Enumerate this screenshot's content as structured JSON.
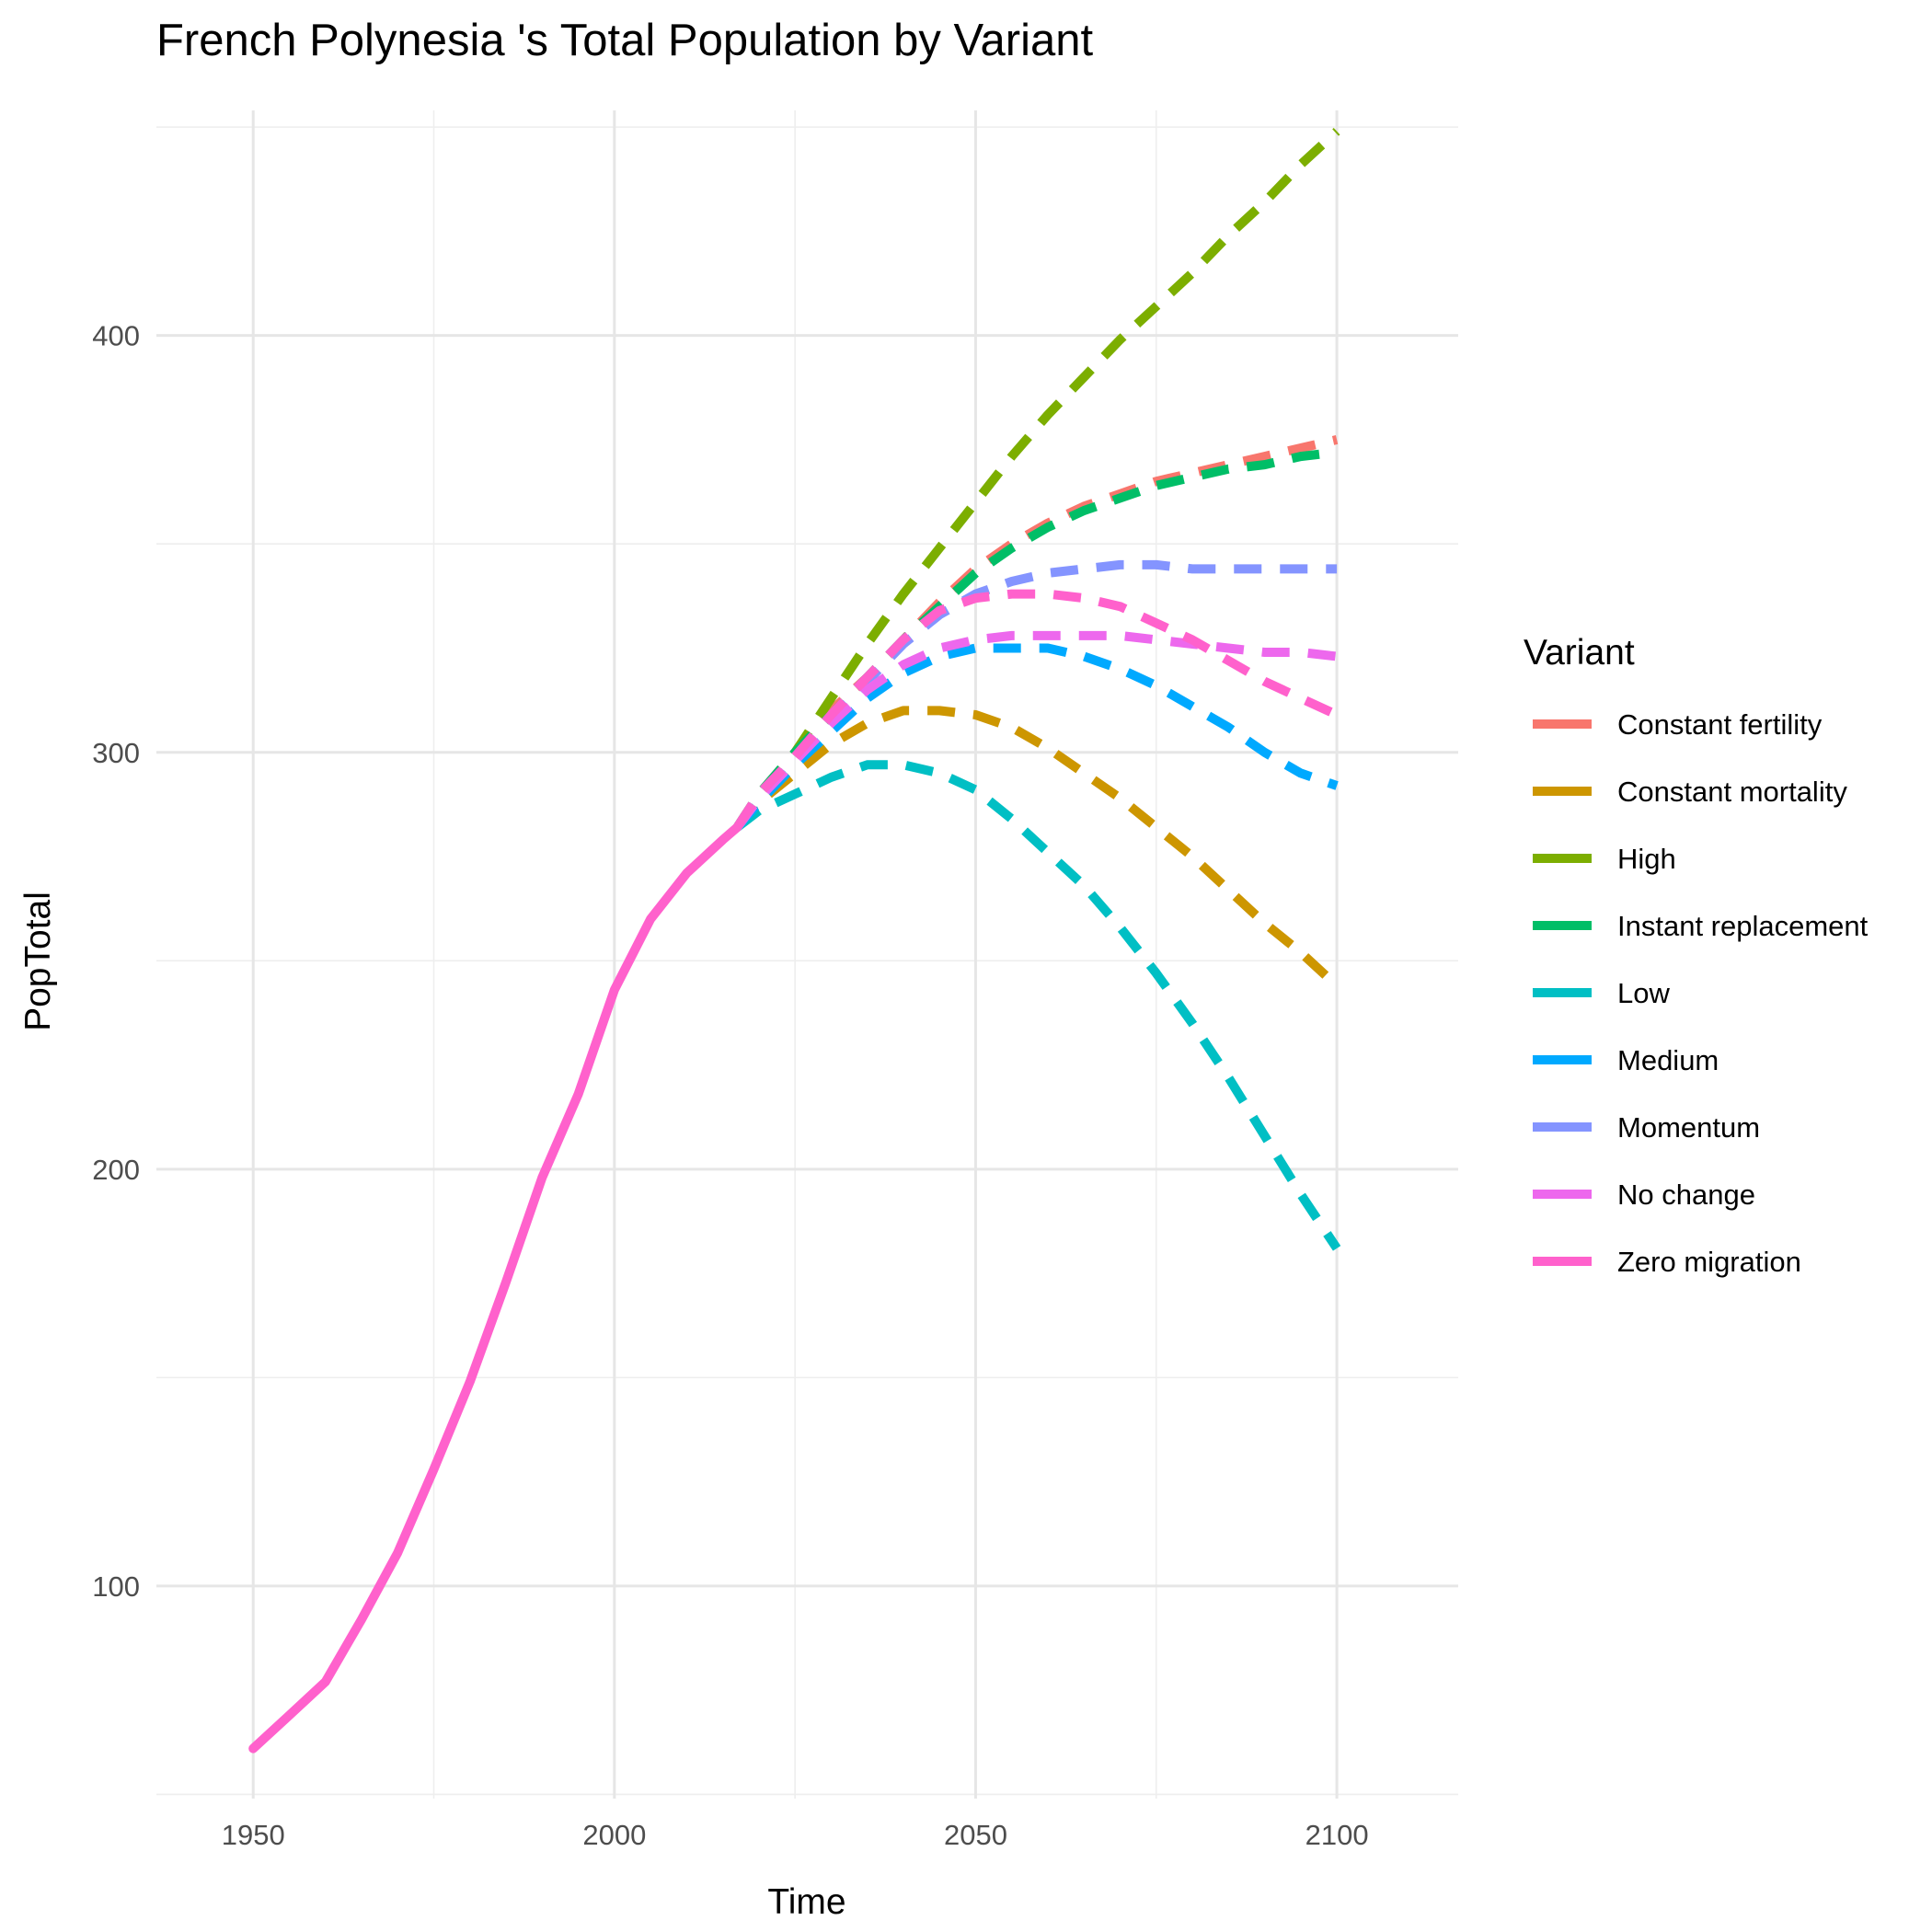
{
  "chart_data": {
    "type": "line",
    "title": "French Polynesia 's Total Population by Variant",
    "xlabel": "Time",
    "ylabel": "PopTotal",
    "xlim": [
      1936.6,
      2116.8
    ],
    "ylim": [
      49,
      454
    ],
    "x_ticks": [
      1950,
      2000,
      2050,
      2100
    ],
    "x_tick_labels": [
      "1950",
      "2000",
      "2050",
      "2100"
    ],
    "y_ticks": [
      100,
      200,
      300,
      400
    ],
    "y_tick_labels": [
      "100",
      "200",
      "300",
      "400"
    ],
    "grid": true,
    "legend": {
      "title": "Variant",
      "position": "right"
    },
    "series": [
      {
        "name": "Constant fertility",
        "color": "#F8766D",
        "dashed": true,
        "x": [
          2017,
          2020,
          2025,
          2030,
          2035,
          2040,
          2045,
          2050,
          2055,
          2060,
          2065,
          2070,
          2075,
          2080,
          2085,
          2090,
          2095,
          2100
        ],
        "y": [
          282,
          290,
          300,
          310,
          318,
          327,
          336,
          344,
          350,
          355,
          359,
          362,
          365,
          367,
          369,
          371,
          373,
          375
        ]
      },
      {
        "name": "Constant mortality",
        "color": "#CD9600",
        "dashed": true,
        "x": [
          2017,
          2020,
          2025,
          2030,
          2035,
          2040,
          2045,
          2050,
          2055,
          2060,
          2065,
          2070,
          2075,
          2080,
          2085,
          2090,
          2095,
          2100
        ],
        "y": [
          282,
          288,
          295,
          302,
          307,
          310,
          310,
          309,
          306,
          301,
          295,
          289,
          282,
          275,
          267,
          259,
          252,
          244
        ]
      },
      {
        "name": "High",
        "color": "#7CAE00",
        "dashed": true,
        "x": [
          2017,
          2020,
          2025,
          2030,
          2035,
          2040,
          2045,
          2050,
          2055,
          2060,
          2065,
          2070,
          2075,
          2080,
          2085,
          2090,
          2095,
          2100
        ],
        "y": [
          282,
          289,
          300,
          313,
          326,
          338,
          349,
          360,
          371,
          381,
          390,
          399,
          407,
          415,
          424,
          432,
          441,
          449
        ]
      },
      {
        "name": "Instant replacement",
        "color": "#00BE67",
        "dashed": true,
        "x": [
          2017,
          2020,
          2025,
          2030,
          2035,
          2040,
          2045,
          2050,
          2055,
          2060,
          2065,
          2070,
          2075,
          2080,
          2085,
          2090,
          2095,
          2100
        ],
        "y": [
          282,
          290,
          300,
          309,
          318,
          327,
          335,
          343,
          349,
          354,
          358,
          361,
          364,
          366,
          368,
          369,
          371,
          372
        ]
      },
      {
        "name": "Low",
        "color": "#00BFC4",
        "dashed": true,
        "x": [
          2017,
          2020,
          2025,
          2030,
          2035,
          2040,
          2045,
          2050,
          2055,
          2060,
          2065,
          2070,
          2075,
          2080,
          2085,
          2090,
          2095,
          2100
        ],
        "y": [
          282,
          286,
          290,
          294,
          297,
          297,
          295,
          291,
          284,
          276,
          268,
          258,
          247,
          235,
          222,
          208,
          194,
          181
        ]
      },
      {
        "name": "Medium",
        "color": "#00A9FF",
        "dashed": true,
        "x": [
          2017,
          2020,
          2025,
          2030,
          2035,
          2040,
          2045,
          2050,
          2055,
          2060,
          2065,
          2070,
          2075,
          2080,
          2085,
          2090,
          2095,
          2100
        ],
        "y": [
          282,
          288,
          297,
          305,
          313,
          319,
          323,
          325,
          325,
          325,
          323,
          320,
          316,
          311,
          306,
          300,
          295,
          292
        ]
      },
      {
        "name": "Momentum",
        "color": "#8494FF",
        "dashed": true,
        "x": [
          2017,
          2020,
          2025,
          2030,
          2035,
          2040,
          2045,
          2050,
          2055,
          2060,
          2065,
          2070,
          2075,
          2080,
          2085,
          2090,
          2095,
          2100
        ],
        "y": [
          282,
          289,
          298,
          308,
          317,
          326,
          333,
          338,
          341,
          343,
          344,
          345,
          345,
          344,
          344,
          344,
          344,
          344
        ]
      },
      {
        "name": "No change",
        "color": "#ED68ED",
        "dashed": true,
        "x": [
          2017,
          2020,
          2025,
          2030,
          2035,
          2040,
          2045,
          2050,
          2055,
          2060,
          2065,
          2070,
          2075,
          2080,
          2085,
          2090,
          2095,
          2100
        ],
        "y": [
          282,
          289,
          298,
          307,
          315,
          321,
          325,
          327,
          328,
          328,
          328,
          328,
          327,
          326,
          325,
          324,
          324,
          323
        ]
      },
      {
        "name": "Zero migration",
        "color": "#FF61CC",
        "dashed": true,
        "x": [
          2017,
          2020,
          2025,
          2030,
          2035,
          2040,
          2045,
          2050,
          2055,
          2060,
          2065,
          2070,
          2075,
          2080,
          2085,
          2090,
          2095,
          2100
        ],
        "y": [
          282,
          290,
          299,
          309,
          318,
          327,
          334,
          337,
          338,
          338,
          337,
          335,
          331,
          327,
          322,
          317,
          313,
          309
        ]
      }
    ],
    "history": {
      "name": "Zero migration",
      "color": "#FF61CC",
      "dashed": false,
      "x": [
        1950,
        1955,
        1960,
        1965,
        1970,
        1975,
        1980,
        1985,
        1990,
        1995,
        2000,
        2005,
        2010,
        2015,
        2017
      ],
      "y": [
        61,
        69,
        77,
        92,
        108,
        128,
        149,
        173,
        198,
        218,
        243,
        260,
        271,
        279,
        282
      ]
    }
  }
}
